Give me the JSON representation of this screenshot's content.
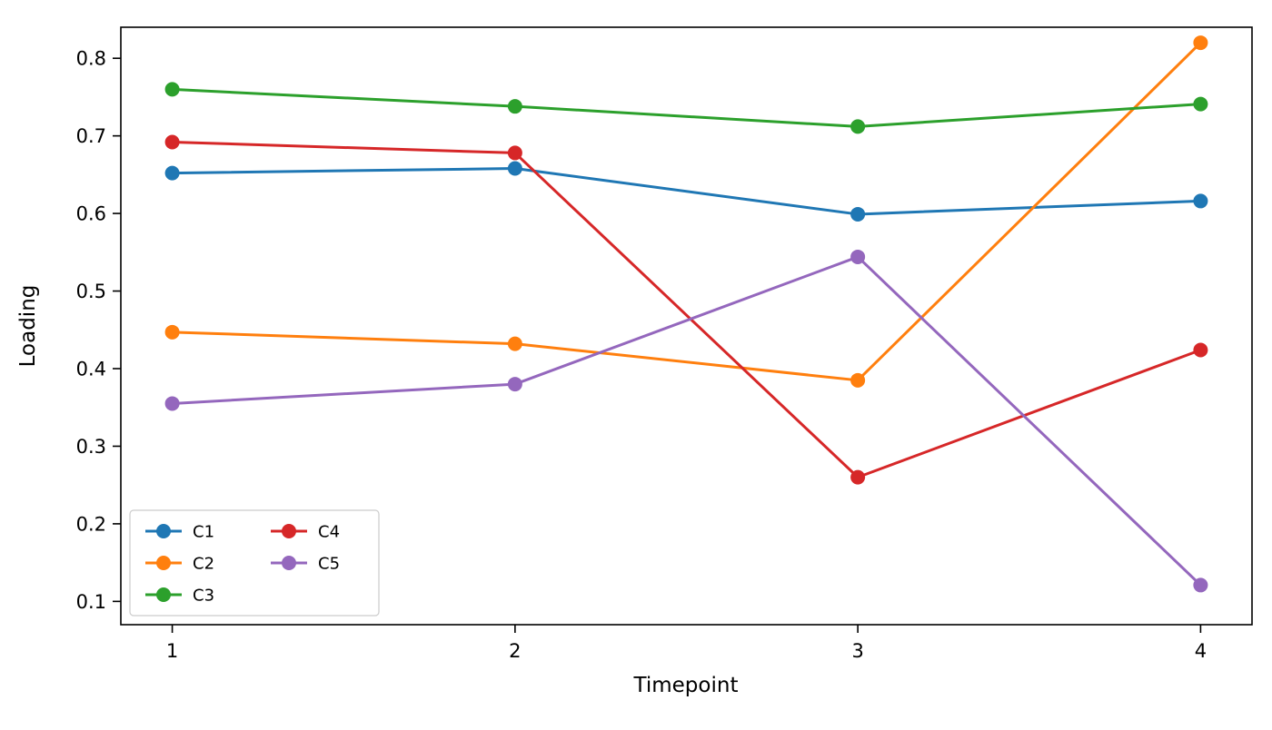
{
  "figure": {
    "background": "#ffffff"
  },
  "chart_data": {
    "type": "line",
    "title": "",
    "xlabel": "Timepoint",
    "ylabel": "Loading",
    "x": [
      1,
      2,
      3,
      4
    ],
    "xlim": [
      0.85,
      4.15
    ],
    "ylim": [
      0.07,
      0.84
    ],
    "xticks": [
      1,
      2,
      3,
      4
    ],
    "yticks": [
      0.1,
      0.2,
      0.3,
      0.4,
      0.5,
      0.6,
      0.7,
      0.8
    ],
    "grid": false,
    "marker": "circle",
    "legend": {
      "position": "lower left",
      "columns": 2,
      "entries": [
        "C1",
        "C2",
        "C3",
        "C4",
        "C5"
      ]
    },
    "series": [
      {
        "name": "C1",
        "color": "#1f77b4",
        "values": [
          0.652,
          0.658,
          0.599,
          0.616
        ]
      },
      {
        "name": "C2",
        "color": "#ff7f0e",
        "values": [
          0.447,
          0.432,
          0.385,
          0.82
        ]
      },
      {
        "name": "C3",
        "color": "#2ca02c",
        "values": [
          0.76,
          0.738,
          0.712,
          0.741
        ]
      },
      {
        "name": "C4",
        "color": "#d62728",
        "values": [
          0.692,
          0.678,
          0.26,
          0.424
        ]
      },
      {
        "name": "C5",
        "color": "#9467bd",
        "values": [
          0.355,
          0.38,
          0.544,
          0.121
        ]
      }
    ]
  }
}
